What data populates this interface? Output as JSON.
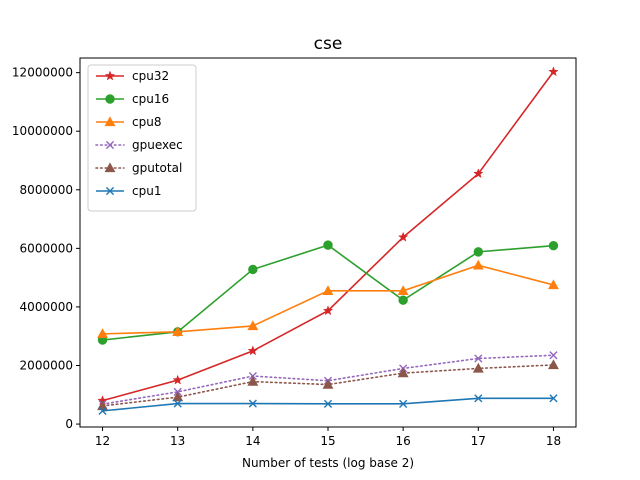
{
  "chart_data": {
    "type": "line",
    "title": "cse",
    "xlabel": "Number of tests (log base 2)",
    "ylabel": "",
    "x": [
      12,
      13,
      14,
      15,
      16,
      17,
      18
    ],
    "xlim": [
      11.7,
      18.3
    ],
    "ylim": [
      -100000,
      12500000
    ],
    "yticks": [
      0,
      2000000,
      4000000,
      6000000,
      8000000,
      10000000,
      12000000
    ],
    "ytick_labels": [
      "0",
      "2000000",
      "4000000",
      "6000000",
      "8000000",
      "10000000",
      "12000000"
    ],
    "xtick_labels": [
      "12",
      "13",
      "14",
      "15",
      "16",
      "17",
      "18"
    ],
    "grid": false,
    "legend_position": "upper-left",
    "series": [
      {
        "name": "cpu32",
        "color": "#d62728",
        "marker": "star",
        "linestyle": "solid",
        "values": [
          800000,
          1500000,
          2500000,
          3870000,
          6380000,
          8550000,
          12030000
        ]
      },
      {
        "name": "cpu16",
        "color": "#2ca02c",
        "marker": "circle",
        "linestyle": "solid",
        "values": [
          2870000,
          3150000,
          5280000,
          6110000,
          4230000,
          5880000,
          6090000
        ]
      },
      {
        "name": "cpu8",
        "color": "#ff7f0e",
        "marker": "triangle",
        "linestyle": "solid",
        "values": [
          3080000,
          3150000,
          3350000,
          4550000,
          4550000,
          5420000,
          4750000
        ]
      },
      {
        "name": "gpuexec",
        "color": "#9467bd",
        "marker": "x",
        "linestyle": "dotted",
        "values": [
          680000,
          1100000,
          1640000,
          1480000,
          1900000,
          2240000,
          2350000
        ]
      },
      {
        "name": "gputotal",
        "color": "#8c564b",
        "marker": "triangle",
        "linestyle": "dotted",
        "values": [
          620000,
          920000,
          1450000,
          1350000,
          1740000,
          1900000,
          2020000
        ]
      },
      {
        "name": "cpu1",
        "color": "#1f77b4",
        "marker": "x",
        "linestyle": "solid",
        "values": [
          450000,
          700000,
          700000,
          690000,
          690000,
          880000,
          880000
        ]
      }
    ]
  }
}
